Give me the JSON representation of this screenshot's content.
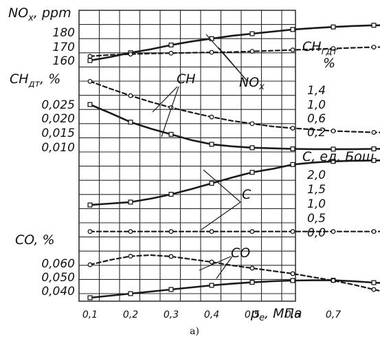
{
  "caption": "а)",
  "colors": {
    "line": "#1a1a1a",
    "grid": "#2a2a2a",
    "background": "#ffffff"
  },
  "chart_data": {
    "type": "line",
    "x": [
      0.1,
      0.15,
      0.2,
      0.25,
      0.3,
      0.35,
      0.4,
      0.45,
      0.5,
      0.55,
      0.6,
      0.65,
      0.7,
      0.75,
      0.8,
      0.85
    ],
    "xticks": [
      "0,1",
      "0,2",
      "0,3",
      "0,4",
      "0,5",
      "0,6",
      "0,7"
    ],
    "xtick_values": [
      0.1,
      0.2,
      0.3,
      0.4,
      0.5,
      0.6,
      0.7
    ],
    "x_axis_label": {
      "main": "p",
      "sub": "e",
      "unit": ", МПа"
    },
    "xlim": [
      0.1,
      0.85
    ],
    "grid": true,
    "panels": [
      {
        "id": "nox",
        "left_axis": {
          "main": "NO",
          "sub": "x",
          "unit": ", ppm",
          "ticks": [
            "180",
            "170",
            "160"
          ],
          "tick_values": [
            180,
            170,
            160
          ]
        },
        "right_axis": {
          "main": "CH",
          "sub": "гдт",
          "unit": "%",
          "ticks": [],
          "tick_values": []
        },
        "series": [
          {
            "style": "solid",
            "axis": "left",
            "y": [
              160,
              162.5,
              165.5,
              168,
              171,
              173.5,
              175.5,
              177.5,
              179,
              180.5,
              182,
              183,
              183.8,
              184.5,
              185,
              185
            ]
          },
          {
            "style": "dashed",
            "axis": "left",
            "y": [
              163,
              164,
              164.5,
              165,
              165.2,
              165.5,
              165.8,
              166,
              166.5,
              167,
              167.5,
              168,
              168.5,
              169,
              169.5,
              169.5
            ]
          }
        ]
      },
      {
        "id": "ch",
        "left_axis": {
          "main": "CH",
          "sub": "дт",
          "unit": ", %",
          "ticks": [
            "0,025",
            "0,020",
            "0,015",
            "0,010"
          ],
          "tick_values": [
            0.025,
            0.02,
            0.015,
            0.01
          ]
        },
        "right_axis": {
          "main": "",
          "sub": "",
          "unit": "",
          "ticks": [
            "1,4",
            "1,0",
            "0,6",
            "0,2"
          ],
          "tick_values": [
            1.4,
            1.0,
            0.6,
            0.2
          ]
        },
        "series": [
          {
            "style": "solid",
            "axis": "left",
            "y": [
              0.025,
              0.022,
              0.0188,
              0.0165,
              0.0145,
              0.0125,
              0.011,
              0.0103,
              0.0098,
              0.0096,
              0.0094,
              0.0093,
              0.0093,
              0.0093,
              0.0094,
              0.0094
            ]
          },
          {
            "style": "dashed",
            "axis": "right",
            "y": [
              1.65,
              1.44,
              1.24,
              1.06,
              0.9,
              0.76,
              0.63,
              0.52,
              0.44,
              0.36,
              0.31,
              0.27,
              0.23,
              0.21,
              0.19,
              0.18
            ]
          }
        ]
      },
      {
        "id": "c",
        "left_axis": {
          "main": "",
          "sub": "",
          "unit": "",
          "ticks": [],
          "tick_values": []
        },
        "right_axis": {
          "main": "C",
          "sub": "",
          "unit": ", ед. Бош",
          "ticks": [
            "2,0",
            "1,5",
            "1,0",
            "0,5",
            "0,0"
          ],
          "tick_values": [
            2.0,
            1.5,
            1.0,
            0.5,
            0.0
          ]
        },
        "series": [
          {
            "style": "solid",
            "axis": "right",
            "y": [
              0.95,
              1.0,
              1.05,
              1.17,
              1.32,
              1.5,
              1.7,
              1.9,
              2.08,
              2.2,
              2.35,
              2.42,
              2.46,
              2.48,
              2.49,
              2.5
            ]
          },
          {
            "style": "dashed",
            "axis": "right",
            "y": [
              0.03,
              0.03,
              0.03,
              0.03,
              0.03,
              0.03,
              0.03,
              0.03,
              0.03,
              0.03,
              0.03,
              0.03,
              0.03,
              0.03,
              0.03,
              0.03
            ]
          }
        ]
      },
      {
        "id": "co",
        "left_axis": {
          "main": "CO",
          "sub": "",
          "unit": ", %",
          "ticks": [
            "0,060",
            "0,050",
            "0,040"
          ],
          "tick_values": [
            0.06,
            0.05,
            0.04
          ]
        },
        "right_axis": {
          "main": "",
          "sub": "",
          "unit": "",
          "ticks": [],
          "tick_values": []
        },
        "series": [
          {
            "style": "solid",
            "axis": "left",
            "y": [
              0.035,
              0.0365,
              0.038,
              0.0395,
              0.041,
              0.0425,
              0.044,
              0.0452,
              0.0462,
              0.047,
              0.0475,
              0.0477,
              0.0477,
              0.047,
              0.046,
              0.0452
            ]
          },
          {
            "style": "dashed",
            "axis": "left",
            "y": [
              0.059,
              0.0625,
              0.0652,
              0.066,
              0.065,
              0.063,
              0.061,
              0.0585,
              0.0565,
              0.0545,
              0.0525,
              0.05,
              0.0475,
              0.0445,
              0.041,
              0.0375
            ]
          }
        ]
      }
    ],
    "annotations": [
      {
        "id": "nox",
        "main": "NO",
        "sub": "x"
      },
      {
        "id": "ch",
        "main": "CH",
        "sub": ""
      },
      {
        "id": "c",
        "main": "C",
        "sub": ""
      },
      {
        "id": "co",
        "main": "CO",
        "sub": ""
      }
    ]
  }
}
